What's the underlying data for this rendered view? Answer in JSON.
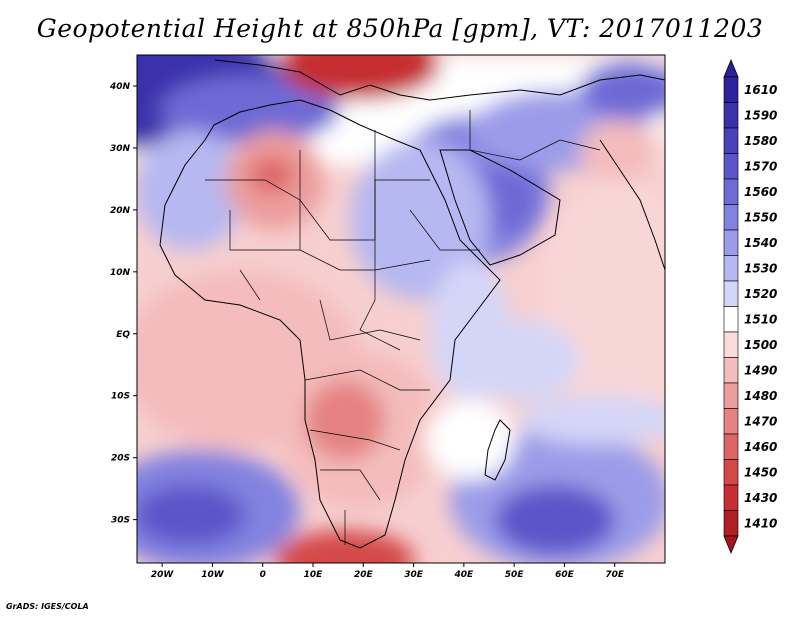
{
  "title": "Geopotential Height at 850hPa [gpm], VT: 2017011203",
  "credit": "GrADS: IGES/COLA",
  "map": {
    "lon_range": [
      -25,
      80
    ],
    "lat_range": [
      -37,
      45
    ],
    "lon_ticks": [
      {
        "value": -20,
        "label": "20W"
      },
      {
        "value": -10,
        "label": "10W"
      },
      {
        "value": 0,
        "label": "0"
      },
      {
        "value": 10,
        "label": "10E"
      },
      {
        "value": 20,
        "label": "20E"
      },
      {
        "value": 30,
        "label": "30E"
      },
      {
        "value": 40,
        "label": "40E"
      },
      {
        "value": 50,
        "label": "50E"
      },
      {
        "value": 60,
        "label": "60E"
      },
      {
        "value": 70,
        "label": "70E"
      }
    ],
    "lat_ticks": [
      {
        "value": 40,
        "label": "40N"
      },
      {
        "value": 30,
        "label": "30N"
      },
      {
        "value": 20,
        "label": "20N"
      },
      {
        "value": 10,
        "label": "10N"
      },
      {
        "value": 0,
        "label": "EQ"
      },
      {
        "value": -10,
        "label": "10S"
      },
      {
        "value": -20,
        "label": "20S"
      },
      {
        "value": -30,
        "label": "30S"
      }
    ]
  },
  "colorbar": {
    "top_color": "#2b1f9e",
    "bottom_color": "#a8161b",
    "levels": [
      {
        "label": "1610",
        "color": "#2e239c"
      },
      {
        "label": "1590",
        "color": "#3a31ab"
      },
      {
        "label": "1580",
        "color": "#4940bb"
      },
      {
        "label": "1570",
        "color": "#5a55c9"
      },
      {
        "label": "1560",
        "color": "#6d6bd6"
      },
      {
        "label": "1550",
        "color": "#8282e0"
      },
      {
        "label": "1540",
        "color": "#9b9ce9"
      },
      {
        "label": "1530",
        "color": "#b6b8f1"
      },
      {
        "label": "1520",
        "color": "#d4d6f8"
      },
      {
        "label": "1510",
        "color": "#ffffff"
      },
      {
        "label": "1500",
        "color": "#fbdada"
      },
      {
        "label": "1490",
        "color": "#f4bcbc"
      },
      {
        "label": "1480",
        "color": "#ec9d9d"
      },
      {
        "label": "1470",
        "color": "#e58282"
      },
      {
        "label": "1460",
        "color": "#dd6565"
      },
      {
        "label": "1450",
        "color": "#d44848"
      },
      {
        "label": "1430",
        "color": "#c62f31"
      },
      {
        "label": "1410",
        "color": "#b01f22"
      }
    ]
  }
}
